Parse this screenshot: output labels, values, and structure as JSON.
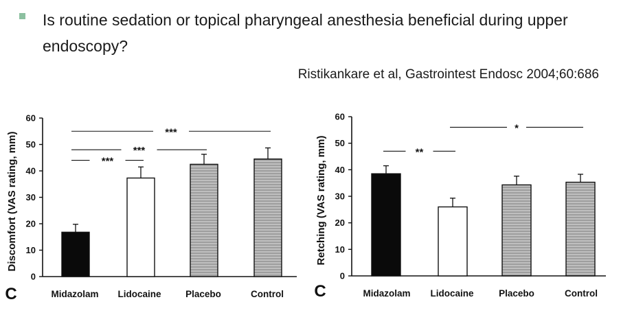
{
  "slide": {
    "question": "Is routine sedation or  topical pharyngeal anesthesia beneficial during upper endoscopy?",
    "citation": "Ristikankare et al, Gastrointest Endosc 2004;60:686",
    "bullet_color": "#8cc0a0"
  },
  "chart_data": [
    {
      "type": "bar",
      "panel_label": "C",
      "categories": [
        "Midazolam",
        "Lidocaine",
        "Placebo",
        "Control"
      ],
      "values": [
        16.8,
        37.3,
        42.5,
        44.5
      ],
      "error": [
        3.0,
        4.2,
        3.8,
        4.2
      ],
      "fills": [
        "solid-black",
        "white",
        "gray-stripes",
        "gray-stripes"
      ],
      "ylabel": "Discomfort (VAS rating, mm)",
      "ylim": [
        0,
        60
      ],
      "yticks": [
        0,
        10,
        20,
        30,
        40,
        50,
        60
      ],
      "significance": [
        {
          "from": 0,
          "to": 1,
          "label": "***",
          "y": 44
        },
        {
          "from": 0,
          "to": 2,
          "label": "***",
          "y": 48
        },
        {
          "from": 0,
          "to": 3,
          "label": "***",
          "y": 55
        }
      ]
    },
    {
      "type": "bar",
      "panel_label": "C",
      "categories": [
        "Midazolam",
        "Lidocaine",
        "Placebo",
        "Control"
      ],
      "values": [
        38.5,
        26.0,
        34.3,
        35.3
      ],
      "error": [
        3.0,
        3.3,
        3.3,
        3.0
      ],
      "fills": [
        "solid-black",
        "white",
        "gray-stripes",
        "gray-stripes"
      ],
      "ylabel": "Retching (VAS rating, mm)",
      "ylim": [
        0,
        60
      ],
      "yticks": [
        0,
        10,
        20,
        30,
        40,
        50,
        60
      ],
      "significance": [
        {
          "from": 0,
          "to": 1,
          "label": "**",
          "y": 47
        },
        {
          "from": 1,
          "to": 3,
          "label": "*",
          "y": 56
        }
      ]
    }
  ]
}
